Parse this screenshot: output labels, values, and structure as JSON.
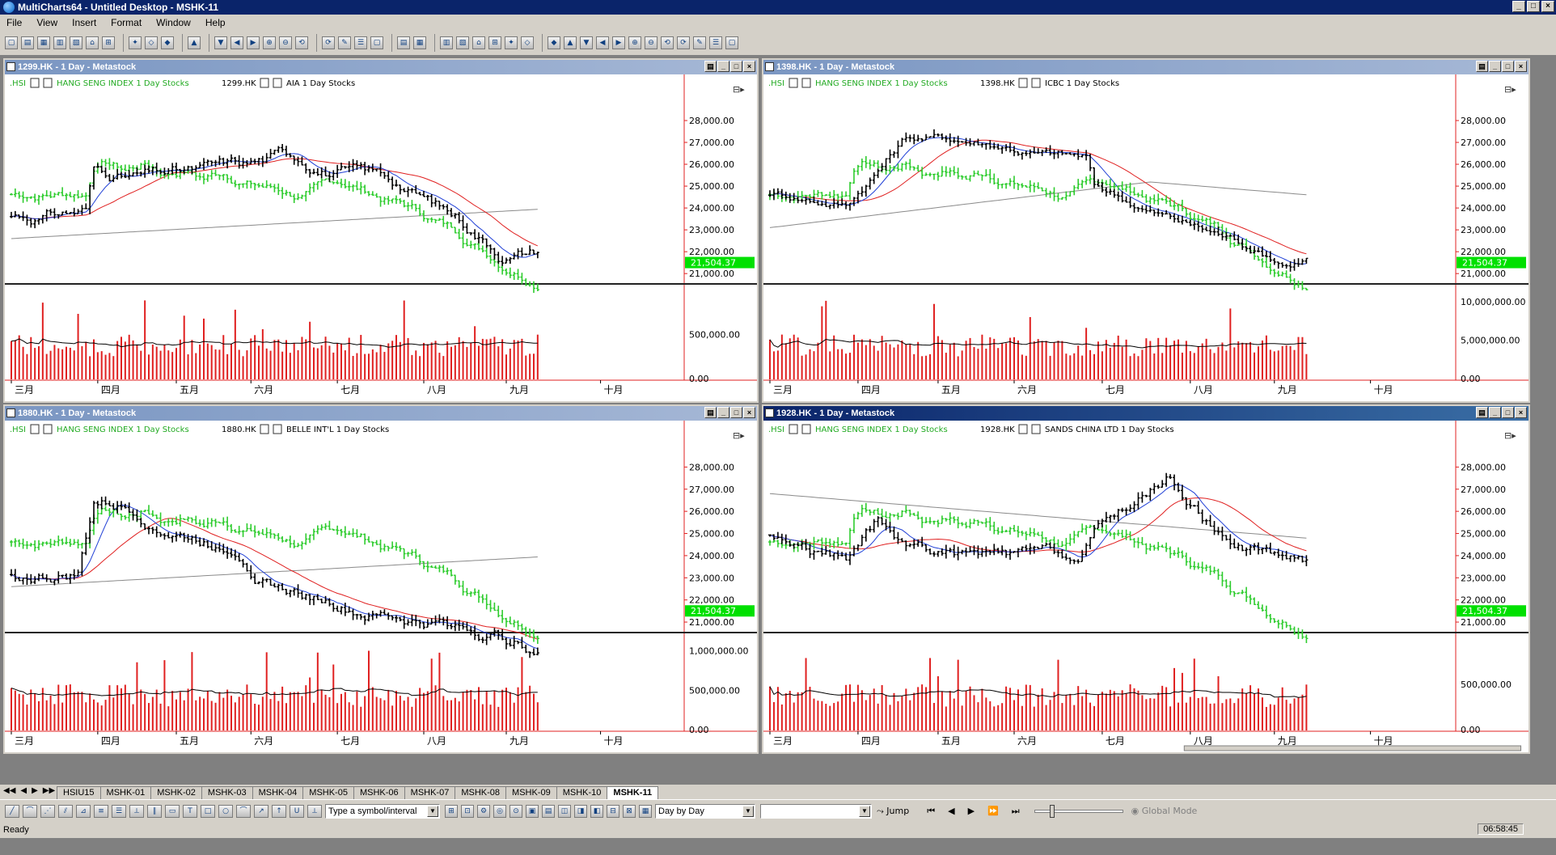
{
  "app": {
    "title": "MultiCharts64 - Untitled Desktop - MSHK-11"
  },
  "menu": [
    "File",
    "View",
    "Insert",
    "Format",
    "Window",
    "Help"
  ],
  "window_buttons": [
    "_",
    "□",
    "×"
  ],
  "months": [
    "三月",
    "四月",
    "五月",
    "六月",
    "七月",
    "八月",
    "九月",
    "十月"
  ],
  "panels": [
    {
      "title": "1299.HK - 1 Day - Metastock",
      "index_label": ".HSI",
      "index_desc": "HANG SENG INDEX  1 Day  Stocks",
      "sym": "1299.HK",
      "sym_desc": "AIA  1 Day  Stocks",
      "price_ticks": [
        "28,000.00",
        "27,000.00",
        "26,000.00",
        "25,000.00",
        "24,000.00",
        "23,000.00",
        "22,000.00",
        "21,000.00"
      ],
      "vol_ticks": [
        "500,000.00",
        "0.00"
      ],
      "last_price": "21,504.37",
      "active": false
    },
    {
      "title": "1398.HK - 1 Day - Metastock",
      "index_label": ".HSI",
      "index_desc": "HANG SENG INDEX  1 Day  Stocks",
      "sym": "1398.HK",
      "sym_desc": "ICBC  1 Day  Stocks",
      "price_ticks": [
        "28,000.00",
        "27,000.00",
        "26,000.00",
        "25,000.00",
        "24,000.00",
        "23,000.00",
        "22,000.00",
        "21,000.00"
      ],
      "vol_ticks": [
        "10,000,000.00",
        "5,000,000.00",
        "0.00"
      ],
      "last_price": "21,504.37",
      "active": false
    },
    {
      "title": "1880.HK - 1 Day - Metastock",
      "index_label": ".HSI",
      "index_desc": "HANG SENG INDEX  1 Day  Stocks",
      "sym": "1880.HK",
      "sym_desc": "BELLE INT'L  1 Day  Stocks",
      "price_ticks": [
        "28,000.00",
        "27,000.00",
        "26,000.00",
        "25,000.00",
        "24,000.00",
        "23,000.00",
        "22,000.00",
        "21,000.00"
      ],
      "vol_ticks": [
        "1,000,000.00",
        "500,000.00",
        "0.00"
      ],
      "last_price": "21,504.37",
      "active": false
    },
    {
      "title": "1928.HK - 1 Day - Metastock",
      "index_label": ".HSI",
      "index_desc": "HANG SENG INDEX  1 Day  Stocks",
      "sym": "1928.HK",
      "sym_desc": "SANDS CHINA LTD  1 Day  Stocks",
      "price_ticks": [
        "28,000.00",
        "27,000.00",
        "26,000.00",
        "25,000.00",
        "24,000.00",
        "23,000.00",
        "22,000.00",
        "21,000.00"
      ],
      "vol_ticks": [
        "500,000.00",
        "0.00"
      ],
      "last_price": "21,504.37",
      "active": true
    }
  ],
  "tabs": [
    "HSIU15",
    "MSHK-01",
    "MSHK-02",
    "MSHK-03",
    "MSHK-04",
    "MSHK-05",
    "MSHK-06",
    "MSHK-07",
    "MSHK-08",
    "MSHK-09",
    "MSHK-10",
    "MSHK-11"
  ],
  "active_tab": "MSHK-11",
  "drawbar": {
    "symbol_placeholder": "Type a symbol/interval",
    "mode": "Day by Day",
    "jump": "Jump",
    "global_mode": "Global Mode"
  },
  "status": {
    "text": "Ready",
    "clock": "06:58:45"
  },
  "colors": {
    "index_bars": "#2ecc2e",
    "stock_bars": "#000000",
    "ma_fast": "#1f3fd6",
    "ma_mid": "#e02020",
    "ma_slow": "#8a8a8a",
    "volume": "#e02020",
    "last_price_bg": "#00e000"
  }
}
